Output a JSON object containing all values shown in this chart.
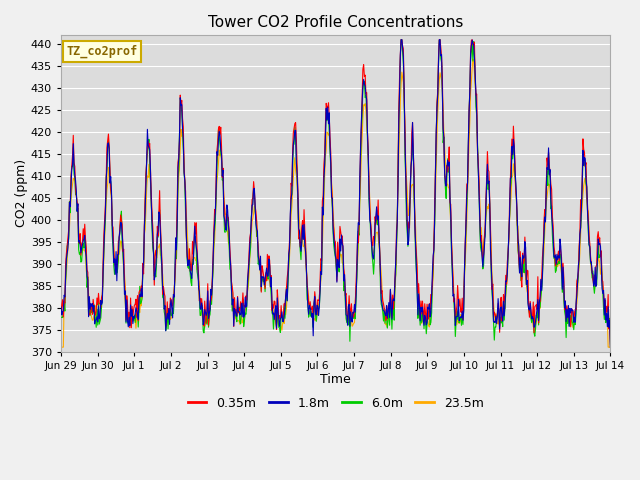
{
  "title": "Tower CO2 Profile Concentrations",
  "xlabel": "Time",
  "ylabel": "CO2 (ppm)",
  "ylim": [
    370,
    442
  ],
  "yticks": [
    370,
    375,
    380,
    385,
    390,
    395,
    400,
    405,
    410,
    415,
    420,
    425,
    430,
    435,
    440
  ],
  "legend_label": "TZ_co2prof",
  "series_labels": [
    "0.35m",
    "1.8m",
    "6.0m",
    "23.5m"
  ],
  "series_colors": [
    "#ff0000",
    "#0000bb",
    "#00cc00",
    "#ffaa00"
  ],
  "xtick_labels": [
    "Jun 29",
    "Jun 30",
    "Jul 1",
    "Jul 2",
    "Jul 3",
    "Jul 4",
    "Jul 5",
    "Jul 6",
    "Jul 7",
    "Jul 8",
    "Jul 9",
    "Jul 10",
    "Jul 11",
    "Jul 12",
    "Jul 13",
    "Jul 14"
  ],
  "n_days": 15,
  "n_pts": 720,
  "seed": 42,
  "fig_bg": "#f0f0f0",
  "ax_bg": "#dcdcdc",
  "grid_color": "#ffffff"
}
